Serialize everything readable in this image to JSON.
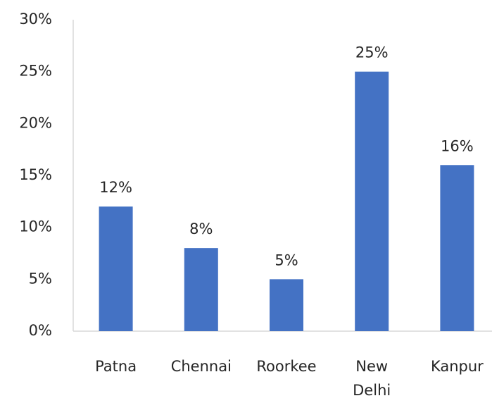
{
  "chart_data": {
    "type": "bar",
    "categories": [
      "Patna",
      "Chennai",
      "Roorkee",
      "New Delhi",
      "Kanpur"
    ],
    "values": [
      12,
      8,
      5,
      25,
      16
    ],
    "value_labels": [
      "12%",
      "8%",
      "5%",
      "25%",
      "16%"
    ],
    "color": "#4472c4",
    "ylim": [
      0,
      30
    ],
    "yticks": [
      {
        "value": 0,
        "label": "0%"
      },
      {
        "value": 5,
        "label": "5%"
      },
      {
        "value": 10,
        "label": "10%"
      },
      {
        "value": 15,
        "label": "15%"
      },
      {
        "value": 20,
        "label": "20%"
      },
      {
        "value": 25,
        "label": "25%"
      },
      {
        "value": 30,
        "label": "30%"
      }
    ],
    "grid": false
  }
}
